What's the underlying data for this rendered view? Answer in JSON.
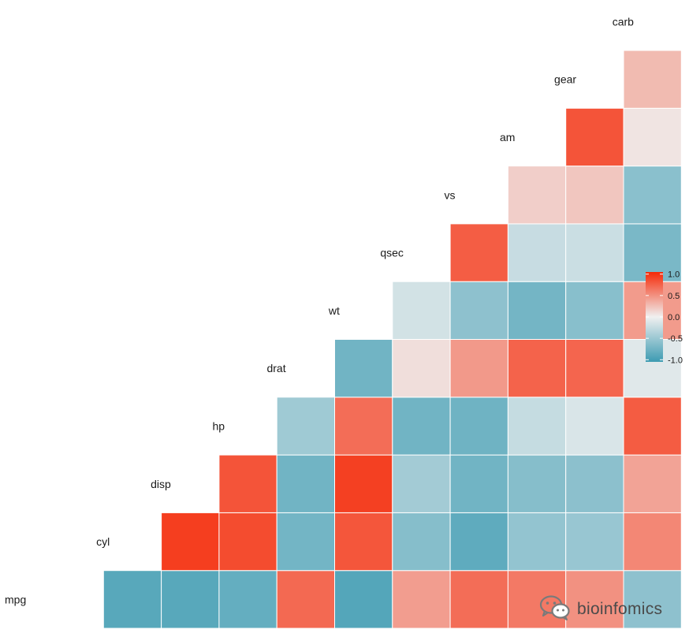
{
  "chart_data": {
    "type": "heatmap",
    "subtype": "lower-triangle correlation matrix",
    "variables": [
      "mpg",
      "cyl",
      "disp",
      "hp",
      "drat",
      "wt",
      "qsec",
      "vs",
      "am",
      "gear",
      "carb"
    ],
    "matrix": [
      [
        null,
        null,
        null,
        null,
        null,
        null,
        null,
        null,
        null,
        null,
        null
      ],
      [
        -0.85,
        null,
        null,
        null,
        null,
        null,
        null,
        null,
        null,
        null,
        null
      ],
      [
        -0.85,
        0.9,
        null,
        null,
        null,
        null,
        null,
        null,
        null,
        null,
        null
      ],
      [
        -0.78,
        0.83,
        0.79,
        null,
        null,
        null,
        null,
        null,
        null,
        null,
        null
      ],
      [
        0.68,
        -0.7,
        -0.71,
        -0.45,
        null,
        null,
        null,
        null,
        null,
        null,
        null
      ],
      [
        -0.87,
        0.78,
        0.89,
        0.66,
        -0.71,
        null,
        null,
        null,
        null,
        null,
        null
      ],
      [
        0.42,
        -0.59,
        -0.43,
        -0.71,
        0.09,
        -0.17,
        null,
        null,
        null,
        null,
        null
      ],
      [
        0.66,
        -0.81,
        -0.71,
        -0.72,
        0.44,
        -0.55,
        0.74,
        null,
        null,
        null,
        null
      ],
      [
        0.6,
        -0.52,
        -0.59,
        -0.24,
        0.71,
        -0.69,
        -0.23,
        0.17,
        null,
        null,
        null
      ],
      [
        0.48,
        -0.49,
        -0.56,
        -0.13,
        0.7,
        -0.58,
        -0.21,
        0.21,
        0.79,
        null,
        null
      ],
      [
        -0.55,
        0.53,
        0.39,
        0.75,
        -0.09,
        0.43,
        -0.66,
        -0.57,
        0.06,
        0.27,
        null
      ]
    ],
    "colorscale": {
      "low": "#3d9bb2",
      "mid": "#f0f0f0",
      "high": "#f52a08"
    },
    "legend": {
      "position": "right",
      "ticks": [
        1.0,
        0.5,
        0.0,
        -0.5,
        -1.0
      ],
      "tick_labels": [
        "1.0",
        "0.5",
        "0.0",
        "-0.5",
        "-1.0"
      ]
    },
    "title": "",
    "xlabel": "",
    "ylabel": ""
  },
  "watermark": {
    "icon": "wechat-icon",
    "text": "bioinfomics"
  }
}
